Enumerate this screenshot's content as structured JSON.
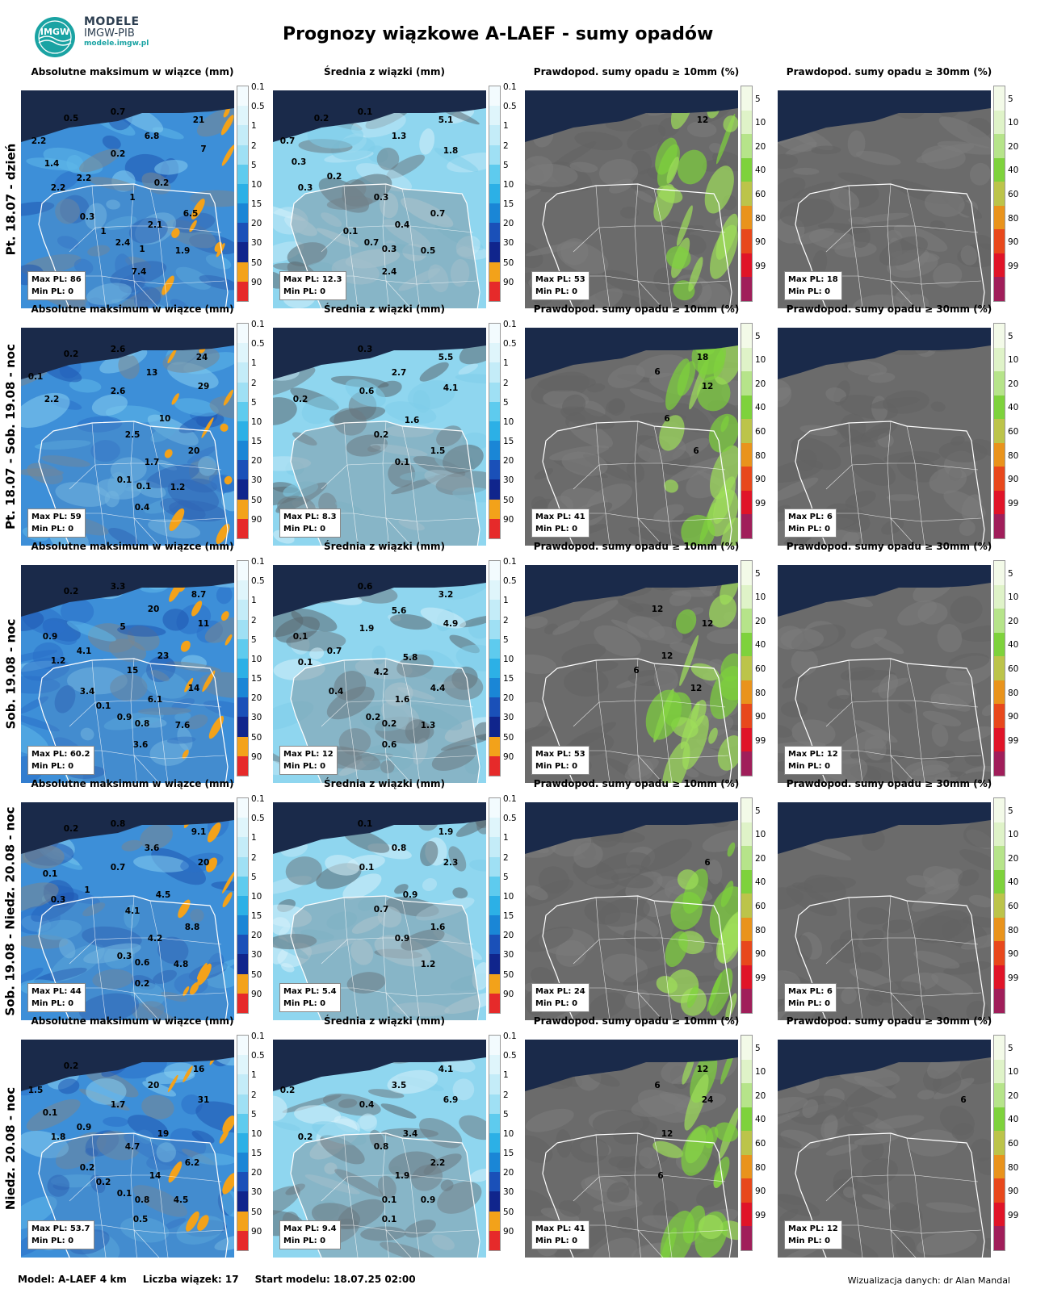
{
  "brand": {
    "name": "MODELE",
    "org": "IMGW-PIB",
    "url": "modele.imgw.pl",
    "logo_text": "IMGW"
  },
  "title": "Prognozy wiązkowe A-LAEF - sumy opadów",
  "columns": [
    {
      "title": "Absolutne maksimum w wiązce (mm)",
      "scale": "precip"
    },
    {
      "title": "Średnia z wiązki (mm)",
      "scale": "precip"
    },
    {
      "title": "Prawdopod. sumy opadu ≥ 10mm (%)",
      "scale": "prob"
    },
    {
      "title": "Prawdopod. sumy opadu ≥ 30mm (%)",
      "scale": "prob"
    }
  ],
  "colorbars": {
    "precip": {
      "ticks": [
        "0.1",
        "0.5",
        "1",
        "2",
        "5",
        "10",
        "15",
        "20",
        "30",
        "50",
        "90"
      ],
      "colors": [
        "#f3fbfe",
        "#dff5fb",
        "#c4ecf8",
        "#9fe0f4",
        "#5ecbee",
        "#2cb0e6",
        "#1a86d6",
        "#1a50b8",
        "#10258c",
        "#f3a21a",
        "#e62a2a"
      ]
    },
    "prob": {
      "ticks": [
        "5",
        "10",
        "20",
        "40",
        "60",
        "80",
        "90",
        "99"
      ],
      "colors": [
        "#f3fae8",
        "#dff3c8",
        "#b6e48a",
        "#7ed23c",
        "#bcc44a",
        "#e9931c",
        "#e8481c",
        "#e01428",
        "#a01e5a"
      ]
    }
  },
  "rows": [
    {
      "label": "Pt. 18.07 - dzień",
      "panels": [
        {
          "max": "Max PL: 86",
          "min": "Min PL: 0",
          "values": [
            [
              "0.5",
              62,
              150
            ],
            [
              "0.7",
              120,
              142
            ],
            [
              "21",
              220,
              152
            ],
            [
              "6.8",
              162,
              172
            ],
            [
              "7",
              226,
              188
            ],
            [
              "2.2",
              22,
              178
            ],
            [
              "0.2",
              120,
              194
            ],
            [
              "1.4",
              38,
              206
            ],
            [
              "2.2",
              78,
              224
            ],
            [
              "0.2",
              174,
              230
            ],
            [
              "2.2",
              46,
              236
            ],
            [
              "1",
              138,
              248
            ],
            [
              "6.5",
              210,
              268
            ],
            [
              "0.3",
              82,
              272
            ],
            [
              "2.1",
              166,
              282
            ],
            [
              "1",
              102,
              290
            ],
            [
              "2.4",
              126,
              304
            ],
            [
              "1",
              150,
              312
            ],
            [
              "1.9",
              200,
              314
            ],
            [
              "7.4",
              146,
              340
            ]
          ]
        },
        {
          "max": "Max PL: 12.3",
          "min": "Min PL: 0",
          "values": [
            [
              "0.2",
              60,
              150
            ],
            [
              "0.1",
              114,
              142
            ],
            [
              "5.1",
              214,
              152
            ],
            [
              "0.7",
              18,
              178
            ],
            [
              "1.3",
              156,
              172
            ],
            [
              "1.8",
              220,
              190
            ],
            [
              "0.3",
              32,
              204
            ],
            [
              "0.2",
              76,
              222
            ],
            [
              "0.3",
              40,
              236
            ],
            [
              "0.3",
              134,
              248
            ],
            [
              "0.7",
              204,
              268
            ],
            [
              "0.4",
              160,
              282
            ],
            [
              "0.1",
              96,
              290
            ],
            [
              "0.7",
              122,
              304
            ],
            [
              "0.3",
              144,
              312
            ],
            [
              "0.5",
              192,
              314
            ],
            [
              "2.4",
              144,
              340
            ]
          ]
        },
        {
          "max": "Max PL: 53",
          "min": "Min PL: 0",
          "values": [
            [
              "12",
              220,
              152
            ]
          ]
        },
        {
          "max": "Max PL: 18",
          "min": "Min PL: 0",
          "values": []
        }
      ]
    },
    {
      "label": "Pt. 18.07 - Sob. 19.08 - noc",
      "panels": [
        {
          "max": "Max PL: 59",
          "min": "Min PL: 0",
          "values": [
            [
              "0.2",
              62,
              442
            ],
            [
              "2.6",
              120,
              436
            ],
            [
              "24",
              224,
              446
            ],
            [
              "0.1",
              18,
              470
            ],
            [
              "13",
              162,
              465
            ],
            [
              "29",
              226,
              482
            ],
            [
              "2.2",
              38,
              498
            ],
            [
              "2.6",
              120,
              488
            ],
            [
              "10",
              178,
              522
            ],
            [
              "2.5",
              138,
              542
            ],
            [
              "20",
              214,
              562
            ],
            [
              "1.7",
              162,
              576
            ],
            [
              "0.1",
              128,
              598
            ],
            [
              "0.1",
              152,
              606
            ],
            [
              "1.2",
              194,
              607
            ],
            [
              "0.4",
              150,
              632
            ]
          ]
        },
        {
          "max": "Max PL: 8.3",
          "min": "Min PL: 0",
          "values": [
            [
              "0.3",
              114,
              436
            ],
            [
              "5.5",
              214,
              446
            ],
            [
              "2.7",
              156,
              465
            ],
            [
              "4.1",
              220,
              484
            ],
            [
              "0.2",
              34,
              498
            ],
            [
              "0.6",
              116,
              488
            ],
            [
              "1.6",
              172,
              524
            ],
            [
              "0.2",
              134,
              542
            ],
            [
              "1.5",
              204,
              562
            ],
            [
              "0.1",
              160,
              576
            ]
          ]
        },
        {
          "max": "Max PL: 41",
          "min": "Min PL: 0",
          "values": [
            [
              "18",
              220,
              446
            ],
            [
              "6",
              164,
              464
            ],
            [
              "12",
              226,
              482
            ],
            [
              "6",
              176,
              522
            ],
            [
              "6",
              212,
              562
            ]
          ]
        },
        {
          "max": "Max PL: 6",
          "min": "Min PL: 0",
          "values": []
        }
      ]
    },
    {
      "label": "Sob. 19.08 - noc",
      "panels": [
        {
          "max": "Max PL: 60.2",
          "min": "Min PL: 0",
          "values": [
            [
              "0.2",
              62,
              736
            ],
            [
              "3.3",
              120,
              730
            ],
            [
              "8.7",
              220,
              740
            ],
            [
              "20",
              164,
              758
            ],
            [
              "11",
              226,
              776
            ],
            [
              "5",
              126,
              780
            ],
            [
              "0.9",
              36,
              792
            ],
            [
              "4.1",
              78,
              810
            ],
            [
              "1.2",
              46,
              822
            ],
            [
              "23",
              176,
              816
            ],
            [
              "15",
              138,
              834
            ],
            [
              "14",
              214,
              856
            ],
            [
              "3.4",
              82,
              860
            ],
            [
              "6.1",
              166,
              870
            ],
            [
              "0.1",
              102,
              878
            ],
            [
              "0.9",
              128,
              892
            ],
            [
              "0.8",
              150,
              900
            ],
            [
              "7.6",
              200,
              902
            ],
            [
              "3.6",
              148,
              926
            ]
          ]
        },
        {
          "max": "Max PL: 12",
          "min": "Min PL: 0",
          "values": [
            [
              "0.6",
              114,
              730
            ],
            [
              "3.2",
              214,
              740
            ],
            [
              "5.6",
              156,
              760
            ],
            [
              "4.9",
              220,
              776
            ],
            [
              "1.9",
              116,
              782
            ],
            [
              "0.1",
              34,
              792
            ],
            [
              "0.7",
              76,
              810
            ],
            [
              "5.8",
              170,
              818
            ],
            [
              "0.1",
              40,
              824
            ],
            [
              "4.2",
              134,
              836
            ],
            [
              "4.4",
              204,
              856
            ],
            [
              "0.4",
              78,
              860
            ],
            [
              "1.6",
              160,
              870
            ],
            [
              "0.2",
              124,
              892
            ],
            [
              "0.2",
              144,
              900
            ],
            [
              "1.3",
              192,
              902
            ],
            [
              "0.6",
              144,
              926
            ]
          ]
        },
        {
          "max": "Max PL: 53",
          "min": "Min PL: 0",
          "values": [
            [
              "12",
              164,
              758
            ],
            [
              "12",
              226,
              776
            ],
            [
              "12",
              176,
              816
            ],
            [
              "6",
              138,
              834
            ],
            [
              "12",
              212,
              856
            ]
          ]
        },
        {
          "max": "Max PL: 12",
          "min": "Min PL: 0",
          "values": []
        }
      ]
    },
    {
      "label": "Sob. 19.08 - Niedz. 20.08 - noc",
      "panels": [
        {
          "max": "Max PL: 44",
          "min": "Min PL: 0",
          "values": [
            [
              "0.2",
              62,
              1030
            ],
            [
              "0.8",
              120,
              1024
            ],
            [
              "9.1",
              220,
              1034
            ],
            [
              "3.6",
              162,
              1054
            ],
            [
              "20",
              226,
              1072
            ],
            [
              "0.7",
              120,
              1078
            ],
            [
              "0.1",
              36,
              1086
            ],
            [
              "1",
              82,
              1106
            ],
            [
              "4.5",
              176,
              1112
            ],
            [
              "0.3",
              46,
              1118
            ],
            [
              "4.1",
              138,
              1132
            ],
            [
              "8.8",
              212,
              1152
            ],
            [
              "4.2",
              166,
              1166
            ],
            [
              "0.3",
              128,
              1188
            ],
            [
              "0.6",
              150,
              1196
            ],
            [
              "4.8",
              198,
              1198
            ],
            [
              "0.2",
              150,
              1222
            ]
          ]
        },
        {
          "max": "Max PL: 5.4",
          "min": "Min PL: 0",
          "values": [
            [
              "0.1",
              114,
              1024
            ],
            [
              "1.9",
              214,
              1034
            ],
            [
              "0.8",
              156,
              1054
            ],
            [
              "2.3",
              220,
              1072
            ],
            [
              "0.1",
              116,
              1078
            ],
            [
              "0.9",
              170,
              1112
            ],
            [
              "0.7",
              134,
              1130
            ],
            [
              "1.6",
              204,
              1152
            ],
            [
              "0.9",
              160,
              1166
            ],
            [
              "1.2",
              192,
              1198
            ]
          ]
        },
        {
          "max": "Max PL: 24",
          "min": "Min PL: 0",
          "values": [
            [
              "6",
              226,
              1072
            ]
          ]
        },
        {
          "max": "Max PL: 6",
          "min": "Min PL: 0",
          "values": []
        }
      ]
    },
    {
      "label": "Niedz. 20.08 - noc",
      "panels": [
        {
          "max": "Max PL: 53.7",
          "min": "Min PL: 0",
          "values": [
            [
              "0.2",
              62,
              1324
            ],
            [
              "16",
              220,
              1328
            ],
            [
              "20",
              164,
              1348
            ],
            [
              "1.5",
              18,
              1354
            ],
            [
              "31",
              226,
              1366
            ],
            [
              "1.7",
              120,
              1372
            ],
            [
              "0.1",
              36,
              1382
            ],
            [
              "0.9",
              78,
              1400
            ],
            [
              "1.8",
              46,
              1412
            ],
            [
              "19",
              176,
              1408
            ],
            [
              "4.7",
              138,
              1424
            ],
            [
              "6.2",
              212,
              1444
            ],
            [
              "0.2",
              82,
              1450
            ],
            [
              "14",
              166,
              1460
            ],
            [
              "0.2",
              102,
              1468
            ],
            [
              "0.1",
              128,
              1482
            ],
            [
              "0.8",
              150,
              1490
            ],
            [
              "4.5",
              198,
              1490
            ],
            [
              "0.5",
              148,
              1514
            ]
          ]
        },
        {
          "max": "Max PL: 9.4",
          "min": "Min PL: 0",
          "values": [
            [
              "4.1",
              214,
              1328
            ],
            [
              "3.5",
              156,
              1348
            ],
            [
              "0.2",
              18,
              1354
            ],
            [
              "6.9",
              220,
              1366
            ],
            [
              "0.4",
              116,
              1372
            ],
            [
              "0.2",
              40,
              1412
            ],
            [
              "3.4",
              170,
              1408
            ],
            [
              "0.8",
              134,
              1424
            ],
            [
              "2.2",
              204,
              1444
            ],
            [
              "1.9",
              160,
              1460
            ],
            [
              "0.1",
              144,
              1490
            ],
            [
              "0.9",
              192,
              1490
            ],
            [
              "0.1",
              144,
              1514
            ]
          ]
        },
        {
          "max": "Max PL: 41",
          "min": "Min PL: 0",
          "values": [
            [
              "12",
              220,
              1328
            ],
            [
              "6",
              164,
              1348
            ],
            [
              "24",
              226,
              1366
            ],
            [
              "12",
              176,
              1408
            ],
            [
              "6",
              168,
              1460
            ]
          ]
        },
        {
          "max": "Max PL: 12",
          "min": "Min PL: 0",
          "values": [
            [
              "6",
              230,
              1366
            ]
          ]
        }
      ]
    }
  ],
  "footer": {
    "model": "Model: A-LAEF 4 km",
    "members": "Liczba wiązek: 17",
    "start": "Start modelu: 18.07.25 02:00",
    "credit": "Wizualizacja danych: dr Alan Mandal"
  }
}
